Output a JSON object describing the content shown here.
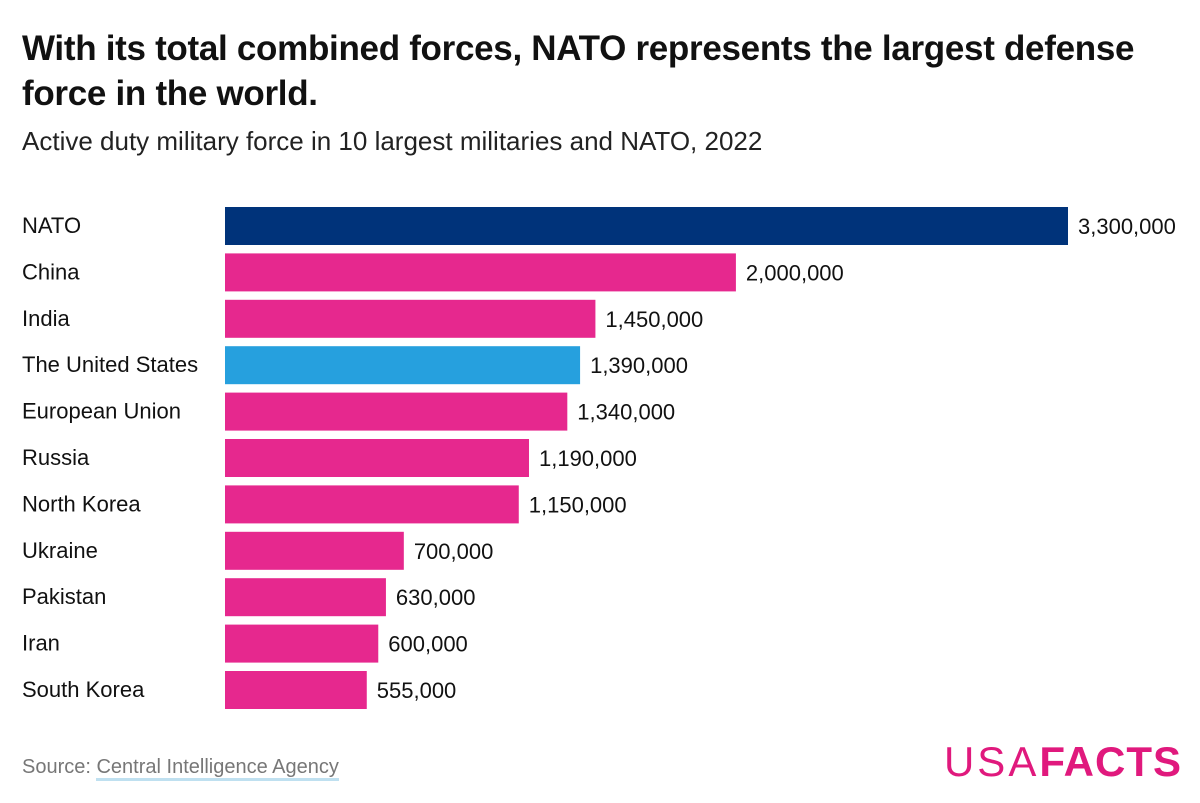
{
  "header": {
    "title": "With its total combined forces, NATO represents the largest defense force in the world.",
    "subtitle": "Active duty military force in 10 largest militaries and NATO, 2022"
  },
  "chart_data": {
    "type": "bar",
    "orientation": "horizontal",
    "categories": [
      "NATO",
      "China",
      "India",
      "The United States",
      "European Union",
      "Russia",
      "North Korea",
      "Ukraine",
      "Pakistan",
      "Iran",
      "South Korea"
    ],
    "values": [
      3300000,
      2000000,
      1450000,
      1390000,
      1340000,
      1190000,
      1150000,
      700000,
      630000,
      600000,
      555000
    ],
    "data_labels": [
      "3,300,000",
      "2,000,000",
      "1,450,000",
      "1,390,000",
      "1,340,000",
      "1,190,000",
      "1,150,000",
      "700,000",
      "630,000",
      "600,000",
      "555,000"
    ],
    "colors": [
      "#00337a",
      "#e6288e",
      "#e6288e",
      "#26a0de",
      "#e6288e",
      "#e6288e",
      "#e6288e",
      "#e6288e",
      "#e6288e",
      "#e6288e",
      "#e6288e"
    ],
    "xlim": [
      0,
      3300000
    ],
    "grid": false,
    "legend": "none"
  },
  "footer": {
    "source_prefix": "Source: ",
    "source_link": "Central Intelligence Agency",
    "logo_light": "USA",
    "logo_bold": "FACTS"
  }
}
